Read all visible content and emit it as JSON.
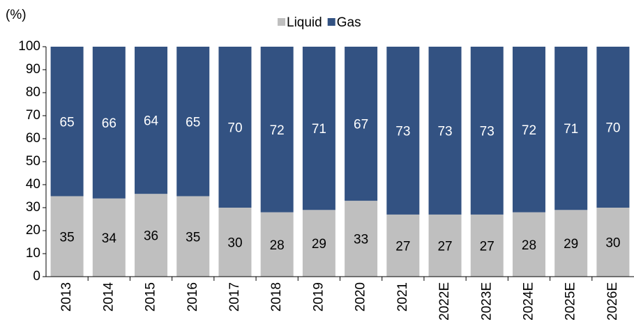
{
  "chart_data": {
    "type": "stacked_bar",
    "y_label": "(%)",
    "categories": [
      "2013",
      "2014",
      "2015",
      "2016",
      "2017",
      "2018",
      "2019",
      "2020",
      "2021",
      "2022E",
      "2023E",
      "2024E",
      "2025E",
      "2026E"
    ],
    "series": [
      {
        "name": "Liquid",
        "color": "#bfbfbf",
        "label_color": "#000000",
        "values": [
          35,
          34,
          36,
          35,
          30,
          28,
          29,
          33,
          27,
          27,
          27,
          28,
          29,
          30
        ]
      },
      {
        "name": "Gas",
        "color": "#335282",
        "label_color": "#ffffff",
        "values": [
          65,
          66,
          64,
          65,
          70,
          72,
          71,
          67,
          73,
          73,
          73,
          72,
          71,
          70
        ]
      }
    ],
    "ylim": [
      0,
      100
    ],
    "yticks": [
      0,
      10,
      20,
      30,
      40,
      50,
      60,
      70,
      80,
      90,
      100
    ],
    "legend": "top",
    "grid": false
  }
}
